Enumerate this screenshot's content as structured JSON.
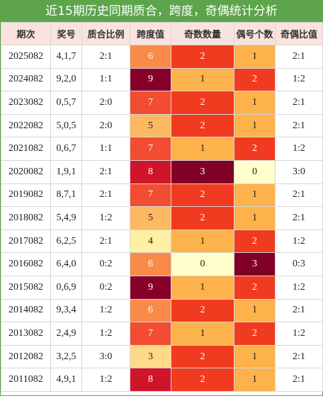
{
  "title": "近15期历史同期质合，跨度，奇偶统计分析",
  "headers": [
    "期次",
    "奖号",
    "质合比例",
    "跨度值",
    "奇数数量",
    "偶号个数",
    "奇偶比值"
  ],
  "rows": [
    {
      "period": "2025082",
      "numbers": "4,1,7",
      "prime_ratio": "2:1",
      "span": "6",
      "odd": "2",
      "even": "1",
      "odd_even": "2:1"
    },
    {
      "period": "2024082",
      "numbers": "9,2,0",
      "prime_ratio": "1:1",
      "span": "9",
      "odd": "1",
      "even": "2",
      "odd_even": "1:2"
    },
    {
      "period": "2023082",
      "numbers": "0,5,7",
      "prime_ratio": "2:0",
      "span": "7",
      "odd": "2",
      "even": "1",
      "odd_even": "2:1"
    },
    {
      "period": "2022082",
      "numbers": "5,0,5",
      "prime_ratio": "2:0",
      "span": "5",
      "odd": "2",
      "even": "1",
      "odd_even": "2:1"
    },
    {
      "period": "2021082",
      "numbers": "0,6,7",
      "prime_ratio": "1:1",
      "span": "7",
      "odd": "1",
      "even": "2",
      "odd_even": "1:2"
    },
    {
      "period": "2020082",
      "numbers": "1,9,1",
      "prime_ratio": "2:1",
      "span": "8",
      "odd": "3",
      "even": "0",
      "odd_even": "3:0"
    },
    {
      "period": "2019082",
      "numbers": "8,7,1",
      "prime_ratio": "2:1",
      "span": "7",
      "odd": "2",
      "even": "1",
      "odd_even": "2:1"
    },
    {
      "period": "2018082",
      "numbers": "5,4,9",
      "prime_ratio": "1:2",
      "span": "5",
      "odd": "2",
      "even": "1",
      "odd_even": "2:1"
    },
    {
      "period": "2017082",
      "numbers": "6,2,5",
      "prime_ratio": "2:1",
      "span": "4",
      "odd": "1",
      "even": "2",
      "odd_even": "1:2"
    },
    {
      "period": "2016082",
      "numbers": "6,4,0",
      "prime_ratio": "0:2",
      "span": "6",
      "odd": "0",
      "even": "3",
      "odd_even": "0:3"
    },
    {
      "period": "2015082",
      "numbers": "0,6,9",
      "prime_ratio": "0:2",
      "span": "9",
      "odd": "1",
      "even": "2",
      "odd_even": "1:2"
    },
    {
      "period": "2014082",
      "numbers": "9,3,4",
      "prime_ratio": "1:2",
      "span": "6",
      "odd": "2",
      "even": "1",
      "odd_even": "2:1"
    },
    {
      "period": "2013082",
      "numbers": "2,4,9",
      "prime_ratio": "1:2",
      "span": "7",
      "odd": "1",
      "even": "2",
      "odd_even": "1:2"
    },
    {
      "period": "2012082",
      "numbers": "3,2,5",
      "prime_ratio": "3:0",
      "span": "3",
      "odd": "2",
      "even": "1",
      "odd_even": "2:1"
    },
    {
      "period": "2011082",
      "numbers": "4,9,1",
      "prime_ratio": "1:2",
      "span": "8",
      "odd": "2",
      "even": "1",
      "odd_even": "2:1"
    }
  ],
  "colors": {
    "title_bg": "#5da44a",
    "header_bg": "#fae3de",
    "span": {
      "3": "#fed98a",
      "4": "#feefa2",
      "5": "#fdb862",
      "6": "#fa8a49",
      "7": "#f24c33",
      "8": "#d0142a",
      "9": "#87002a"
    },
    "count": {
      "0": "#ffffcc",
      "1": "#feb24c",
      "2": "#f03b20",
      "3": "#800026"
    }
  }
}
